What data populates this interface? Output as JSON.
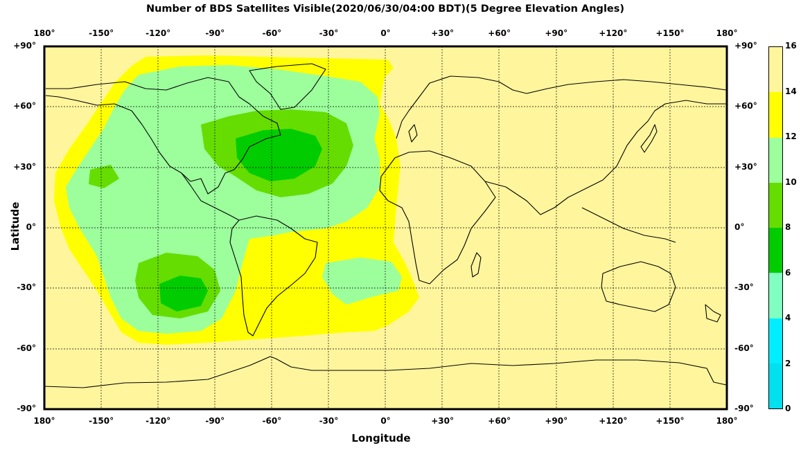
{
  "title": "Number of BDS Satellites Visible(2020/06/30/04:00 BDT)(5 Degree Elevation Angles)",
  "map": {
    "xlabel": "Longitude",
    "ylabel": "Latitude",
    "lon_ticks": [
      "180°",
      "-150°",
      "-120°",
      "-90°",
      "-60°",
      "-30°",
      "0°",
      "+30°",
      "+60°",
      "+90°",
      "+120°",
      "+150°",
      "180°"
    ],
    "lat_ticks": [
      "+90°",
      "+60°",
      "+30°",
      "0°",
      "-30°",
      "-60°",
      "-90°"
    ],
    "lon_range": [
      -180,
      180
    ],
    "lat_range": [
      -90,
      90
    ],
    "grid": true,
    "projection": "equirectangular",
    "background_color": "#fff59d",
    "coastlines": true
  },
  "colorbar": {
    "ticks": [
      "16",
      "14",
      "12",
      "10",
      "8",
      "6",
      "4",
      "2",
      "0"
    ],
    "range": [
      0,
      16
    ],
    "colors_top_to_bottom": [
      "#fff59d",
      "#ffff00",
      "#9cff9c",
      "#66dd00",
      "#00cc00",
      "#80ffc0",
      "#00eeff",
      "#00e0ef"
    ]
  },
  "visibility_regions": [
    {
      "count_range": [
        12,
        14
      ],
      "color": "#ffff00",
      "description_location": "Pacific–Americas–Atlantic, outer band"
    },
    {
      "count_range": [
        10,
        12
      ],
      "color": "#9cff9c",
      "description_location": "Americas and eastern Pacific"
    },
    {
      "count_range": [
        8,
        10
      ],
      "color": "#66dd00",
      "description_location": "North Atlantic, southeast Pacific"
    },
    {
      "count_range": [
        6,
        8
      ],
      "color": "#00cc00",
      "description_location": "central North Atlantic, South Pacific core"
    },
    {
      "count_range": [
        14,
        16
      ],
      "color": "#fff59d",
      "description_location": "Eurasia, Africa, Australia, Indian Ocean, Antarctica"
    }
  ]
}
